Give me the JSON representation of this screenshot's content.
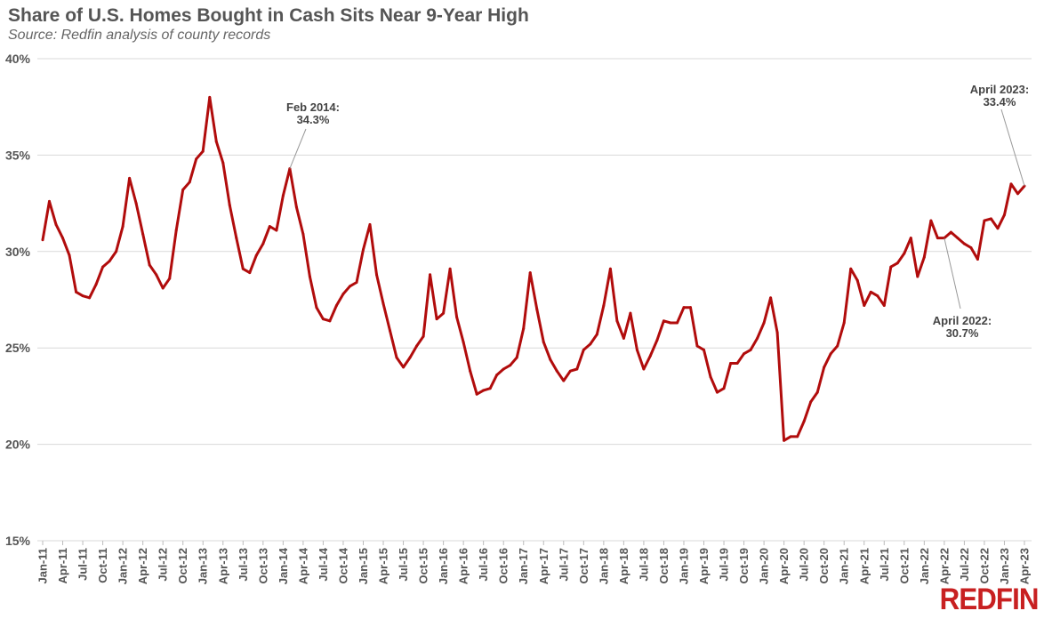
{
  "chart_data": {
    "type": "line",
    "title": "Share of U.S. Homes Bought in Cash Sits Near 9-Year High",
    "subtitle": "Source: Redfin analysis of county records",
    "xlabel": "",
    "ylabel": "",
    "ylim": [
      15,
      40
    ],
    "yticks": [
      "15%",
      "20%",
      "25%",
      "30%",
      "35%",
      "40%"
    ],
    "ytick_values": [
      15,
      20,
      25,
      30,
      35,
      40
    ],
    "x_start": "Jan 2011",
    "x_end": "Apr 2023",
    "xtick_labels": [
      "Jan-11",
      "Apr-11",
      "Jul-11",
      "Oct-11",
      "Jan-12",
      "Apr-12",
      "Jul-12",
      "Oct-12",
      "Jan-13",
      "Apr-13",
      "Jul-13",
      "Oct-13",
      "Jan-14",
      "Apr-14",
      "Jul-14",
      "Oct-14",
      "Jan-15",
      "Apr-15",
      "Jul-15",
      "Oct-15",
      "Jan-16",
      "Apr-16",
      "Jul-16",
      "Oct-16",
      "Jan-17",
      "Apr-17",
      "Jul-17",
      "Oct-17",
      "Jan-18",
      "Apr-18",
      "Jul-18",
      "Oct-18",
      "Jan-19",
      "Apr-19",
      "Jul-19",
      "Oct-19",
      "Jan-20",
      "Apr-20",
      "Jul-20",
      "Oct-20",
      "Jan-21",
      "Apr-21",
      "Jul-21",
      "Oct-21",
      "Jan-22",
      "Apr-22",
      "Jul-22",
      "Oct-22",
      "Jan-23",
      "Apr-23"
    ],
    "grid": "horizontal",
    "line_color": "#b10c0c",
    "series": [
      {
        "values": [
          30.6,
          32.6,
          31.4,
          30.7,
          29.8,
          27.9,
          27.7,
          27.6,
          28.3,
          29.2,
          29.5,
          30.0,
          31.3,
          33.8,
          32.5,
          30.9,
          29.3,
          28.8,
          28.1,
          28.6,
          31.1,
          33.2,
          33.6,
          34.8,
          35.2,
          38.0,
          35.7,
          34.6,
          32.4,
          30.7,
          29.1,
          28.9,
          29.8,
          30.4,
          31.3,
          31.1,
          32.9,
          34.3,
          32.3,
          30.9,
          28.7,
          27.1,
          26.5,
          26.4,
          27.2,
          27.8,
          28.2,
          28.4,
          30.1,
          31.4,
          28.8,
          27.3,
          25.9,
          24.5,
          24.0,
          24.5,
          25.1,
          25.6,
          28.8,
          26.5,
          26.8,
          29.1,
          26.6,
          25.3,
          23.8,
          22.6,
          22.8,
          22.9,
          23.6,
          23.9,
          24.1,
          24.5,
          26.0,
          28.9,
          27.0,
          25.3,
          24.4,
          23.8,
          23.3,
          23.8,
          23.9,
          24.9,
          25.2,
          25.7,
          27.2,
          29.1,
          26.4,
          25.5,
          26.8,
          24.9,
          23.9,
          24.6,
          25.4,
          26.4,
          26.3,
          26.3,
          27.1,
          27.1,
          25.1,
          24.9,
          23.5,
          22.7,
          22.9,
          24.2,
          24.2,
          24.7,
          24.9,
          25.5,
          26.3,
          27.6,
          25.8,
          20.2,
          20.4,
          20.4,
          21.2,
          22.2,
          22.7,
          24.0,
          24.7,
          25.1,
          26.3,
          29.1,
          28.5,
          27.2,
          27.9,
          27.7,
          27.2,
          29.2,
          29.4,
          29.9,
          30.7,
          28.7,
          29.7,
          31.6,
          30.7,
          30.7,
          31.0,
          30.7,
          30.4,
          30.2,
          29.6,
          31.6,
          31.7,
          31.2,
          31.9,
          33.5,
          33.0,
          33.4
        ]
      }
    ],
    "annotations": [
      {
        "line1": "Feb 2014:",
        "line2": "34.3%",
        "month_index": 37,
        "value": 34.3
      },
      {
        "line1": "April 2022:",
        "line2": "30.7%",
        "month_index": 135,
        "value": 30.7
      },
      {
        "line1": "April 2023:",
        "line2": "33.4%",
        "month_index": 147,
        "value": 33.4
      }
    ]
  },
  "logo": "REDFIN"
}
